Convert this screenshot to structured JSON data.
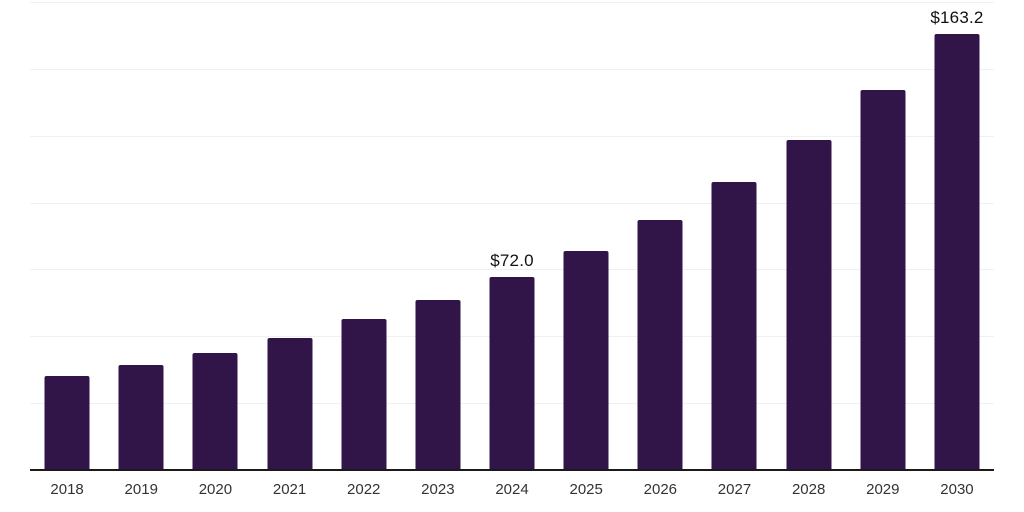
{
  "chart": {
    "background_color": "#ffffff",
    "bar_color": "#311448",
    "gridline_color": "#f0f0f2",
    "axis_color": "#1a1a1a",
    "tick_label_color": "#333333",
    "data_label_color": "#111111"
  },
  "chart_data": {
    "type": "bar",
    "title": "",
    "xlabel": "",
    "ylabel": "",
    "categories": [
      "2018",
      "2019",
      "2020",
      "2021",
      "2022",
      "2023",
      "2024",
      "2025",
      "2026",
      "2027",
      "2028",
      "2029",
      "2030"
    ],
    "values": [
      35.0,
      39.1,
      43.9,
      49.5,
      56.4,
      63.6,
      72.0,
      81.8,
      93.6,
      107.6,
      123.5,
      142.2,
      163.2
    ],
    "data_labels": {
      "2024": "$72.0",
      "2030": "$163.2"
    },
    "ylim": [
      0,
      175
    ],
    "gridline_step": 25,
    "grid": true,
    "legend_position": "none",
    "y_axis_labels_visible": false
  }
}
